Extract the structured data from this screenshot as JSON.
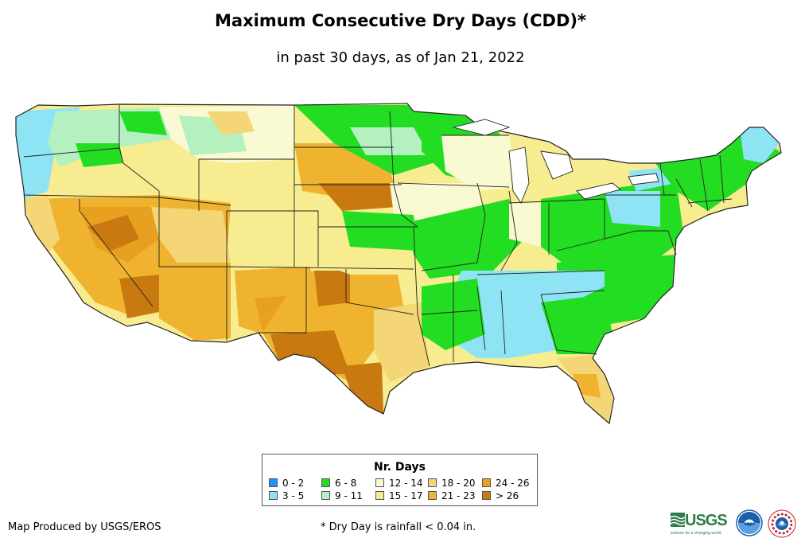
{
  "title": "Maximum Consecutive Dry Days (CDD)*",
  "subtitle": "in past 30 days, as of Jan 21, 2022",
  "legend": {
    "title": "Nr. Days",
    "items": [
      {
        "label": "0 - 2",
        "color": "#1e90ff"
      },
      {
        "label": "3 - 5",
        "color": "#8ee3f5"
      },
      {
        "label": "6 - 8",
        "color": "#22dd22"
      },
      {
        "label": "9 - 11",
        "color": "#b4f0c0"
      },
      {
        "label": "12 - 14",
        "color": "#fafad2"
      },
      {
        "label": "15 - 17",
        "color": "#f7ec8f"
      },
      {
        "label": "18 - 20",
        "color": "#f5d676"
      },
      {
        "label": "21 - 23",
        "color": "#f0b330"
      },
      {
        "label": "24 - 26",
        "color": "#e8a020"
      },
      {
        "label": "> 26",
        "color": "#c87a10"
      }
    ]
  },
  "credit": "Map Produced by USGS/EROS",
  "footnote": "* Dry Day is rainfall < 0.04 in.",
  "logos": {
    "usgs": "USGS",
    "usgs_tagline": "science for a changing world",
    "noaa": "NOAA",
    "nws": "National Weather Service"
  }
}
